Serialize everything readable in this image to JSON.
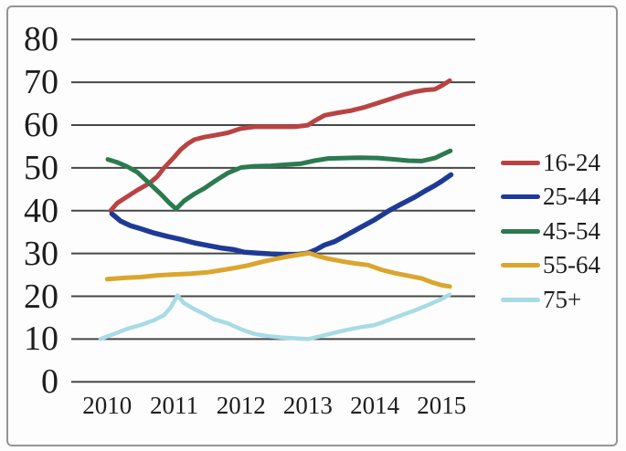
{
  "chart_data": {
    "type": "line",
    "title": "",
    "xlabel": "",
    "ylabel": "",
    "grid": "horizontal",
    "legend_position": "right",
    "xlim": [
      2009.8,
      2015.5
    ],
    "ylim": [
      0,
      80
    ],
    "xticks": [
      "2010",
      "2011",
      "2012",
      "2013",
      "2014",
      "2015"
    ],
    "xtick_years": [
      2010,
      2011,
      2012,
      2013,
      2014,
      2015
    ],
    "yticks": [
      "80",
      "70",
      "60",
      "50",
      "40",
      "30",
      "20",
      "10",
      "0"
    ],
    "ytick_values": [
      80,
      70,
      60,
      50,
      40,
      30,
      20,
      10,
      0
    ],
    "series": [
      {
        "name": "16-24",
        "color": "#b94343",
        "width": 5,
        "points": [
          [
            2010.05,
            40
          ],
          [
            2010.15,
            41.8
          ],
          [
            2010.3,
            43.3
          ],
          [
            2010.45,
            44.8
          ],
          [
            2010.63,
            46.4
          ],
          [
            2010.75,
            48
          ],
          [
            2010.85,
            50
          ],
          [
            2011.0,
            52.5
          ],
          [
            2011.1,
            54.3
          ],
          [
            2011.2,
            55.6
          ],
          [
            2011.3,
            56.6
          ],
          [
            2011.45,
            57.2
          ],
          [
            2011.6,
            57.6
          ],
          [
            2011.8,
            58.2
          ],
          [
            2012.0,
            59.2
          ],
          [
            2012.2,
            59.6
          ],
          [
            2012.5,
            59.6
          ],
          [
            2012.8,
            59.6
          ],
          [
            2013.0,
            60.0
          ],
          [
            2013.1,
            61.0
          ],
          [
            2013.25,
            62.3
          ],
          [
            2013.45,
            62.9
          ],
          [
            2013.65,
            63.4
          ],
          [
            2013.85,
            64.2
          ],
          [
            2014.05,
            65.2
          ],
          [
            2014.25,
            66.2
          ],
          [
            2014.45,
            67.2
          ],
          [
            2014.6,
            67.8
          ],
          [
            2014.75,
            68.2
          ],
          [
            2014.9,
            68.4
          ],
          [
            2015.0,
            69.2
          ],
          [
            2015.12,
            70.4
          ]
        ]
      },
      {
        "name": "25-44",
        "color": "#1e3a96",
        "width": 5.5,
        "points": [
          [
            2010.07,
            39.3
          ],
          [
            2010.2,
            37.6
          ],
          [
            2010.35,
            36.5
          ],
          [
            2010.5,
            35.8
          ],
          [
            2010.7,
            34.8
          ],
          [
            2010.9,
            34.0
          ],
          [
            2011.1,
            33.3
          ],
          [
            2011.3,
            32.5
          ],
          [
            2011.5,
            31.9
          ],
          [
            2011.7,
            31.3
          ],
          [
            2011.9,
            30.9
          ],
          [
            2012.05,
            30.3
          ],
          [
            2012.25,
            30.1
          ],
          [
            2012.45,
            29.9
          ],
          [
            2012.65,
            29.8
          ],
          [
            2012.85,
            29.8
          ],
          [
            2013.0,
            30.1
          ],
          [
            2013.12,
            30.9
          ],
          [
            2013.25,
            32.0
          ],
          [
            2013.4,
            32.8
          ],
          [
            2013.6,
            34.5
          ],
          [
            2013.8,
            36.2
          ],
          [
            2014.0,
            37.9
          ],
          [
            2014.2,
            39.9
          ],
          [
            2014.4,
            41.6
          ],
          [
            2014.6,
            43.2
          ],
          [
            2014.75,
            44.6
          ],
          [
            2014.9,
            45.9
          ],
          [
            2015.0,
            46.9
          ],
          [
            2015.14,
            48.4
          ]
        ]
      },
      {
        "name": "45-54",
        "color": "#2b7a50",
        "width": 5,
        "points": [
          [
            2010.01,
            52.0
          ],
          [
            2010.15,
            51.3
          ],
          [
            2010.3,
            50.3
          ],
          [
            2010.45,
            49.0
          ],
          [
            2010.63,
            46.4
          ],
          [
            2010.8,
            43.9
          ],
          [
            2010.93,
            41.8
          ],
          [
            2011.03,
            40.4
          ],
          [
            2011.15,
            42.3
          ],
          [
            2011.3,
            43.9
          ],
          [
            2011.45,
            45.2
          ],
          [
            2011.6,
            46.8
          ],
          [
            2011.8,
            48.8
          ],
          [
            2012.0,
            50.1
          ],
          [
            2012.2,
            50.4
          ],
          [
            2012.45,
            50.5
          ],
          [
            2012.7,
            50.8
          ],
          [
            2012.9,
            51.0
          ],
          [
            2013.1,
            51.7
          ],
          [
            2013.3,
            52.2
          ],
          [
            2013.55,
            52.3
          ],
          [
            2013.8,
            52.4
          ],
          [
            2014.05,
            52.3
          ],
          [
            2014.3,
            52.0
          ],
          [
            2014.5,
            51.7
          ],
          [
            2014.7,
            51.6
          ],
          [
            2014.9,
            52.3
          ],
          [
            2015.02,
            53.2
          ],
          [
            2015.13,
            54.0
          ]
        ]
      },
      {
        "name": "55-64",
        "color": "#dba62e",
        "width": 5,
        "points": [
          [
            2010.0,
            24.0
          ],
          [
            2010.25,
            24.3
          ],
          [
            2010.5,
            24.5
          ],
          [
            2010.75,
            24.9
          ],
          [
            2011.0,
            25.1
          ],
          [
            2011.25,
            25.3
          ],
          [
            2011.5,
            25.6
          ],
          [
            2011.7,
            26.1
          ],
          [
            2011.9,
            26.6
          ],
          [
            2012.1,
            27.2
          ],
          [
            2012.3,
            28.0
          ],
          [
            2012.5,
            28.7
          ],
          [
            2012.7,
            29.3
          ],
          [
            2012.9,
            29.8
          ],
          [
            2013.02,
            30.1
          ],
          [
            2013.15,
            29.4
          ],
          [
            2013.3,
            28.8
          ],
          [
            2013.5,
            28.2
          ],
          [
            2013.7,
            27.7
          ],
          [
            2013.9,
            27.3
          ],
          [
            2014.1,
            26.2
          ],
          [
            2014.3,
            25.4
          ],
          [
            2014.5,
            24.8
          ],
          [
            2014.7,
            24.2
          ],
          [
            2014.85,
            23.3
          ],
          [
            2015.0,
            22.6
          ],
          [
            2015.12,
            22.3
          ]
        ]
      },
      {
        "name": "75+",
        "color": "#a8dbe6",
        "width": 4.5,
        "points": [
          [
            2009.9,
            10.0
          ],
          [
            2010.1,
            11.2
          ],
          [
            2010.3,
            12.4
          ],
          [
            2010.5,
            13.3
          ],
          [
            2010.7,
            14.4
          ],
          [
            2010.85,
            15.6
          ],
          [
            2010.95,
            17.4
          ],
          [
            2011.05,
            20.2
          ],
          [
            2011.15,
            18.4
          ],
          [
            2011.3,
            17.0
          ],
          [
            2011.45,
            15.9
          ],
          [
            2011.6,
            14.6
          ],
          [
            2011.8,
            13.7
          ],
          [
            2012.0,
            12.3
          ],
          [
            2012.2,
            11.2
          ],
          [
            2012.4,
            10.7
          ],
          [
            2012.6,
            10.4
          ],
          [
            2012.8,
            10.2
          ],
          [
            2013.0,
            10.0
          ],
          [
            2013.2,
            10.7
          ],
          [
            2013.4,
            11.5
          ],
          [
            2013.6,
            12.2
          ],
          [
            2013.8,
            12.8
          ],
          [
            2014.0,
            13.3
          ],
          [
            2014.2,
            14.4
          ],
          [
            2014.4,
            15.6
          ],
          [
            2014.6,
            16.7
          ],
          [
            2014.8,
            18.0
          ],
          [
            2015.0,
            19.4
          ],
          [
            2015.12,
            20.4
          ]
        ]
      }
    ]
  },
  "colors": {
    "gridline": "#474747",
    "text": "#1d1d1d",
    "frame_border": "#959595",
    "background": "#fdfdfd"
  }
}
